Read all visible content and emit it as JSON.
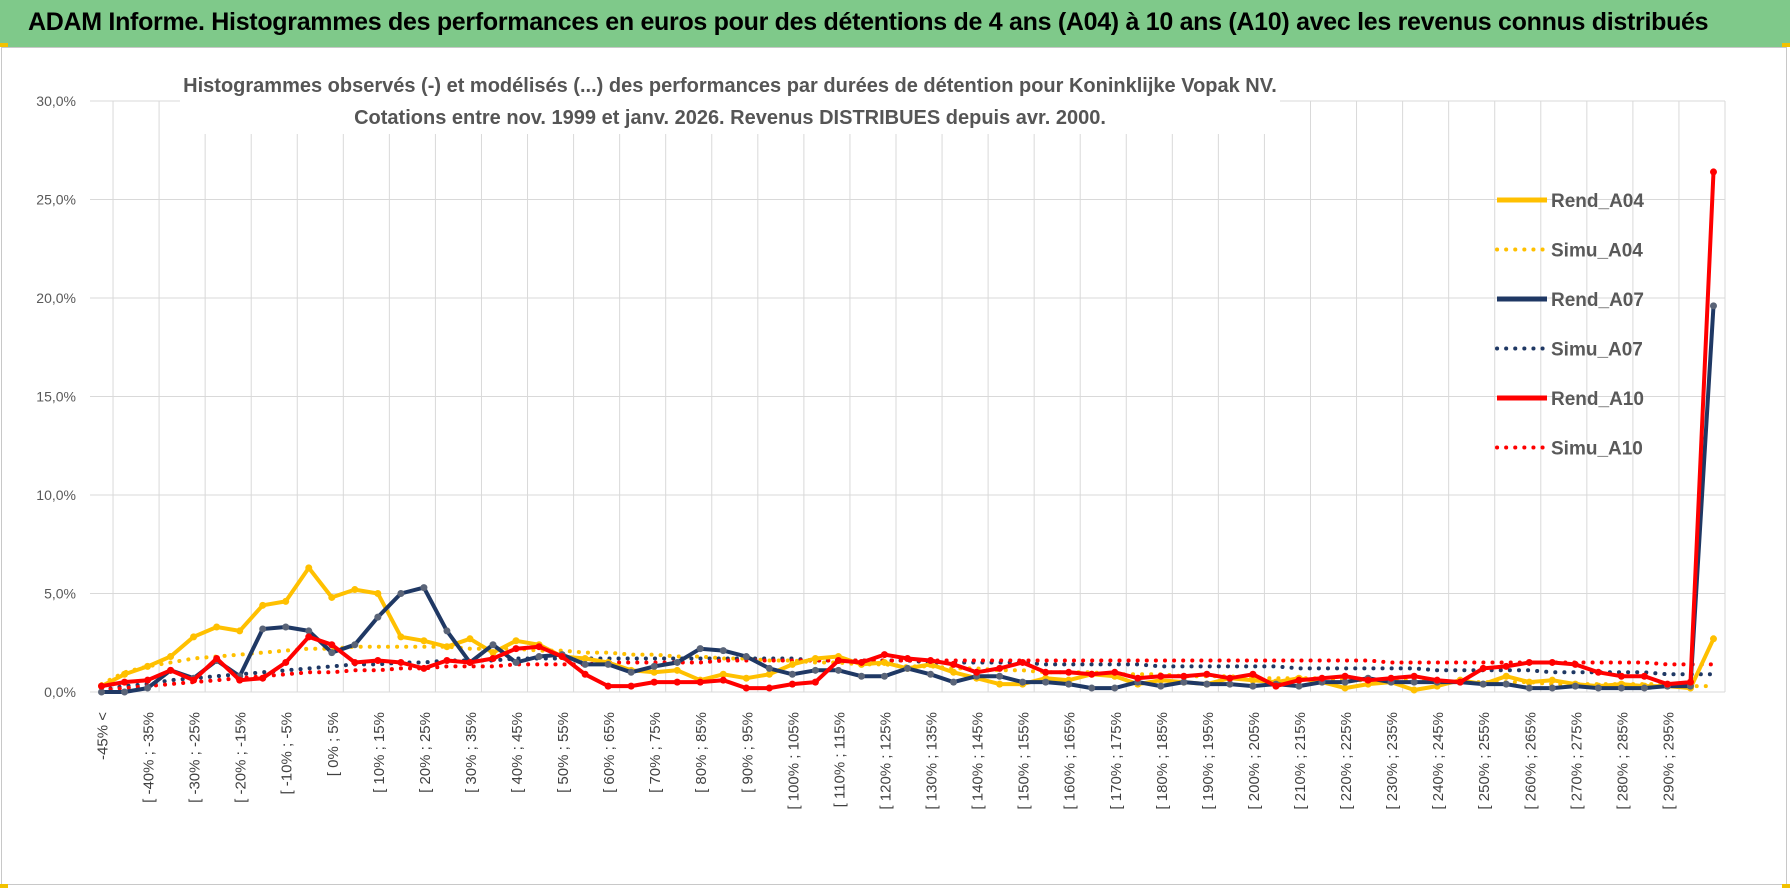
{
  "header": {
    "title": "ADAM Informe. Histogrammes des performances en euros pour des détentions de 4 ans (A04) à 10 ans (A10) avec les revenus connus distribués"
  },
  "colors": {
    "banner": "#7fc98a",
    "A04": "#ffc000",
    "A07": "#1f3864",
    "A10": "#ff0000",
    "grid": "#d9d9d9"
  },
  "chart_data": {
    "type": "line",
    "title": "Histogrammes observés (-) et modélisés (...) des performances par durées de détention pour Koninklijke Vopak NV.",
    "subtitle": "Cotations entre nov. 1999 et janv. 2026. Revenus DISTRIBUES depuis avr. 2000.",
    "ylim": [
      0,
      30
    ],
    "ytick_labels": [
      "0,0%",
      "5,0%",
      "10,0%",
      "15,0%",
      "20,0%",
      "25,0%",
      "30,0%"
    ],
    "grid": true,
    "legend_position": "right",
    "categories": [
      "-45% <",
      "[ -45% ; -40% [",
      "[ -40% ; -35%",
      "[ -35% ; -30% [",
      "[ -30% ; -25%",
      "[ -25% ; -20% [",
      "[ -20% ; -15%",
      "[ -15% ; -10% [",
      "[ -10% ; -5%",
      "[ -5% ; 0% [",
      "[ 0% ; 5%",
      "[ 5% ; 10% [",
      "[ 10% ; 15%",
      "[ 15% ; 20% [",
      "[ 20% ; 25%",
      "[ 25% ; 30% [",
      "[ 30% ; 35%",
      "[ 35% ; 40% [",
      "[ 40% ; 45%",
      "[ 45% ; 50% [",
      "[ 50% ; 55%",
      "[ 55% ; 60% [",
      "[ 60% ; 65%",
      "[ 65% ; 70% [",
      "[ 70% ; 75%",
      "[ 75% ; 80% [",
      "[ 80% ; 85%",
      "[ 85% ; 90% [",
      "[ 90% ; 95%",
      "[ 95% ; 100% [",
      "[ 100% ; 105%",
      "[ 105% ; 110% [",
      "[ 110% ; 115%",
      "[ 115% ; 120% [",
      "[ 120% ; 125%",
      "[ 125% ; 130% [",
      "[ 130% ; 135%",
      "[ 135% ; 140% [",
      "[ 140% ; 145%",
      "[ 145% ; 150% [",
      "[ 150% ; 155%",
      "[ 155% ; 160% [",
      "[ 160% ; 165%",
      "[ 165% ; 170% [",
      "[ 170% ; 175%",
      "[ 175% ; 180% [",
      "[ 180% ; 185%",
      "[ 185% ; 190% [",
      "[ 190% ; 195%",
      "[ 195% ; 200% [",
      "[ 200% ; 205%",
      "[ 205% ; 210% [",
      "[ 210% ; 215%",
      "[ 215% ; 220% [",
      "[ 220% ; 225%",
      "[ 225% ; 230% [",
      "[ 230% ; 235%",
      "[ 235% ; 240% [",
      "[ 240% ; 245%",
      "[ 245% ; 250% [",
      "[ 250% ; 255%",
      "[ 255% ; 260% [",
      "[ 260% ; 265%",
      "[ 265% ; 270% [",
      "[ 270% ; 275%",
      "[ 275% ; 280% [",
      "[ 280% ; 285%",
      "[ 285% ; 290% [",
      "[ 290% ; 295%",
      "[ 295% ; 300% [",
      "300% <"
    ],
    "visible_category_labels": [
      "-45% <",
      "[ -40% ; -35%",
      "[ -30% ; -25%",
      "[ -20% ; -15%",
      "[ -10% ; -5%",
      "[ 0% ; 5%",
      "[ 10% ; 15%",
      "[ 20% ; 25%",
      "[ 30% ; 35%",
      "[ 40% ; 45%",
      "[ 50% ; 55%",
      "[ 60% ; 65%",
      "[ 70% ; 75%",
      "[ 80% ; 85%",
      "[ 90% ; 95%",
      "[ 100% ; 105%",
      "[ 110% ; 115%",
      "[ 120% ; 125%",
      "[ 130% ; 135%",
      "[ 140% ; 145%",
      "[ 150% ; 155%",
      "[ 160% ; 165%",
      "[ 170% ; 175%",
      "[ 180% ; 185%",
      "[ 190% ; 195%",
      "[ 200% ; 205%",
      "[ 210% ; 215%",
      "[ 220% ; 225%",
      "[ 230% ; 235%",
      "[ 240% ; 245%",
      "[ 250% ; 255%",
      "[ 260% ; 265%",
      "[ 270% ; 275%",
      "[ 280% ; 285%",
      "[ 290% ; 295%"
    ],
    "series": [
      {
        "name": "Rend_A04",
        "style": "solid",
        "color": "#ffc000",
        "values": [
          0.3,
          0.9,
          1.3,
          1.8,
          2.8,
          3.3,
          3.1,
          4.4,
          4.6,
          6.3,
          4.8,
          5.2,
          5.0,
          2.8,
          2.6,
          2.3,
          2.7,
          2.0,
          2.6,
          2.4,
          1.8,
          1.7,
          1.5,
          1.1,
          1.0,
          1.1,
          0.6,
          0.9,
          0.7,
          0.9,
          1.4,
          1.7,
          1.8,
          1.4,
          1.5,
          1.2,
          1.4,
          1.0,
          0.7,
          0.4,
          0.4,
          0.7,
          0.6,
          0.9,
          0.8,
          0.4,
          0.6,
          0.5,
          0.4,
          0.7,
          0.6,
          0.5,
          0.7,
          0.5,
          0.2,
          0.4,
          0.5,
          0.1,
          0.3,
          0.6,
          0.4,
          0.8,
          0.5,
          0.6,
          0.4,
          0.3,
          0.4,
          0.3,
          0.3,
          0.2,
          2.7
        ]
      },
      {
        "name": "Simu_A04",
        "style": "dotted",
        "color": "#ffc000",
        "values": [
          0.4,
          1.0,
          1.3,
          1.5,
          1.7,
          1.8,
          1.9,
          2.0,
          2.1,
          2.2,
          2.2,
          2.3,
          2.3,
          2.3,
          2.3,
          2.3,
          2.2,
          2.2,
          2.2,
          2.1,
          2.1,
          2.0,
          2.0,
          1.9,
          1.9,
          1.8,
          1.8,
          1.7,
          1.7,
          1.6,
          1.6,
          1.5,
          1.5,
          1.4,
          1.4,
          1.3,
          1.3,
          1.2,
          1.2,
          1.1,
          1.1,
          1.0,
          1.0,
          1.0,
          0.9,
          0.9,
          0.9,
          0.8,
          0.8,
          0.8,
          0.7,
          0.7,
          0.7,
          0.7,
          0.6,
          0.6,
          0.6,
          0.6,
          0.5,
          0.5,
          0.5,
          0.5,
          0.5,
          0.4,
          0.4,
          0.4,
          0.4,
          0.4,
          0.4,
          0.3,
          0.3
        ]
      },
      {
        "name": "Rend_A07",
        "style": "solid",
        "color": "#1f3864",
        "values": [
          0.0,
          0.0,
          0.2,
          1.1,
          0.7,
          1.6,
          0.8,
          3.2,
          3.3,
          3.1,
          2.0,
          2.4,
          3.8,
          5.0,
          5.3,
          3.1,
          1.5,
          2.4,
          1.5,
          1.8,
          1.9,
          1.4,
          1.4,
          1.0,
          1.3,
          1.5,
          2.2,
          2.1,
          1.8,
          1.2,
          0.9,
          1.1,
          1.1,
          0.8,
          0.8,
          1.2,
          0.9,
          0.5,
          0.8,
          0.8,
          0.5,
          0.5,
          0.4,
          0.2,
          0.2,
          0.5,
          0.3,
          0.5,
          0.4,
          0.4,
          0.3,
          0.4,
          0.3,
          0.5,
          0.5,
          0.7,
          0.5,
          0.5,
          0.5,
          0.5,
          0.4,
          0.4,
          0.2,
          0.2,
          0.3,
          0.2,
          0.2,
          0.2,
          0.3,
          0.3,
          19.6
        ]
      },
      {
        "name": "Simu_A07",
        "style": "dotted",
        "color": "#1f3864",
        "values": [
          0.1,
          0.3,
          0.4,
          0.6,
          0.7,
          0.8,
          0.9,
          1.0,
          1.1,
          1.2,
          1.3,
          1.4,
          1.4,
          1.5,
          1.5,
          1.6,
          1.6,
          1.6,
          1.7,
          1.7,
          1.7,
          1.7,
          1.7,
          1.7,
          1.7,
          1.7,
          1.7,
          1.7,
          1.7,
          1.7,
          1.7,
          1.6,
          1.6,
          1.6,
          1.6,
          1.6,
          1.5,
          1.5,
          1.5,
          1.5,
          1.5,
          1.4,
          1.4,
          1.4,
          1.4,
          1.4,
          1.3,
          1.3,
          1.3,
          1.3,
          1.3,
          1.3,
          1.2,
          1.2,
          1.2,
          1.2,
          1.2,
          1.2,
          1.1,
          1.1,
          1.1,
          1.1,
          1.1,
          1.0,
          1.0,
          1.0,
          1.0,
          1.0,
          0.9,
          0.9,
          0.9
        ]
      },
      {
        "name": "Rend_A10",
        "style": "solid",
        "color": "#ff0000",
        "values": [
          0.3,
          0.5,
          0.6,
          1.1,
          0.6,
          1.7,
          0.6,
          0.7,
          1.5,
          2.8,
          2.4,
          1.5,
          1.6,
          1.5,
          1.2,
          1.6,
          1.5,
          1.7,
          2.2,
          2.3,
          1.8,
          0.9,
          0.3,
          0.3,
          0.5,
          0.5,
          0.5,
          0.6,
          0.2,
          0.2,
          0.4,
          0.5,
          1.6,
          1.5,
          1.9,
          1.7,
          1.6,
          1.4,
          1.0,
          1.2,
          1.5,
          1.0,
          1.0,
          0.9,
          1.0,
          0.7,
          0.8,
          0.8,
          0.9,
          0.7,
          0.9,
          0.3,
          0.6,
          0.7,
          0.8,
          0.6,
          0.7,
          0.8,
          0.6,
          0.5,
          1.2,
          1.3,
          1.5,
          1.5,
          1.4,
          1.0,
          0.8,
          0.8,
          0.4,
          0.5,
          26.4
        ]
      },
      {
        "name": "Simu_A10",
        "style": "dotted",
        "color": "#ff0000",
        "values": [
          0.1,
          0.2,
          0.3,
          0.4,
          0.5,
          0.6,
          0.7,
          0.8,
          0.9,
          1.0,
          1.0,
          1.1,
          1.1,
          1.2,
          1.2,
          1.3,
          1.3,
          1.3,
          1.4,
          1.4,
          1.4,
          1.4,
          1.5,
          1.5,
          1.5,
          1.5,
          1.5,
          1.6,
          1.6,
          1.6,
          1.6,
          1.6,
          1.6,
          1.6,
          1.6,
          1.6,
          1.6,
          1.6,
          1.6,
          1.6,
          1.6,
          1.6,
          1.6,
          1.6,
          1.6,
          1.6,
          1.6,
          1.6,
          1.6,
          1.6,
          1.6,
          1.6,
          1.6,
          1.6,
          1.6,
          1.6,
          1.5,
          1.5,
          1.5,
          1.5,
          1.5,
          1.5,
          1.5,
          1.5,
          1.5,
          1.5,
          1.5,
          1.5,
          1.4,
          1.4,
          1.4
        ]
      }
    ]
  }
}
